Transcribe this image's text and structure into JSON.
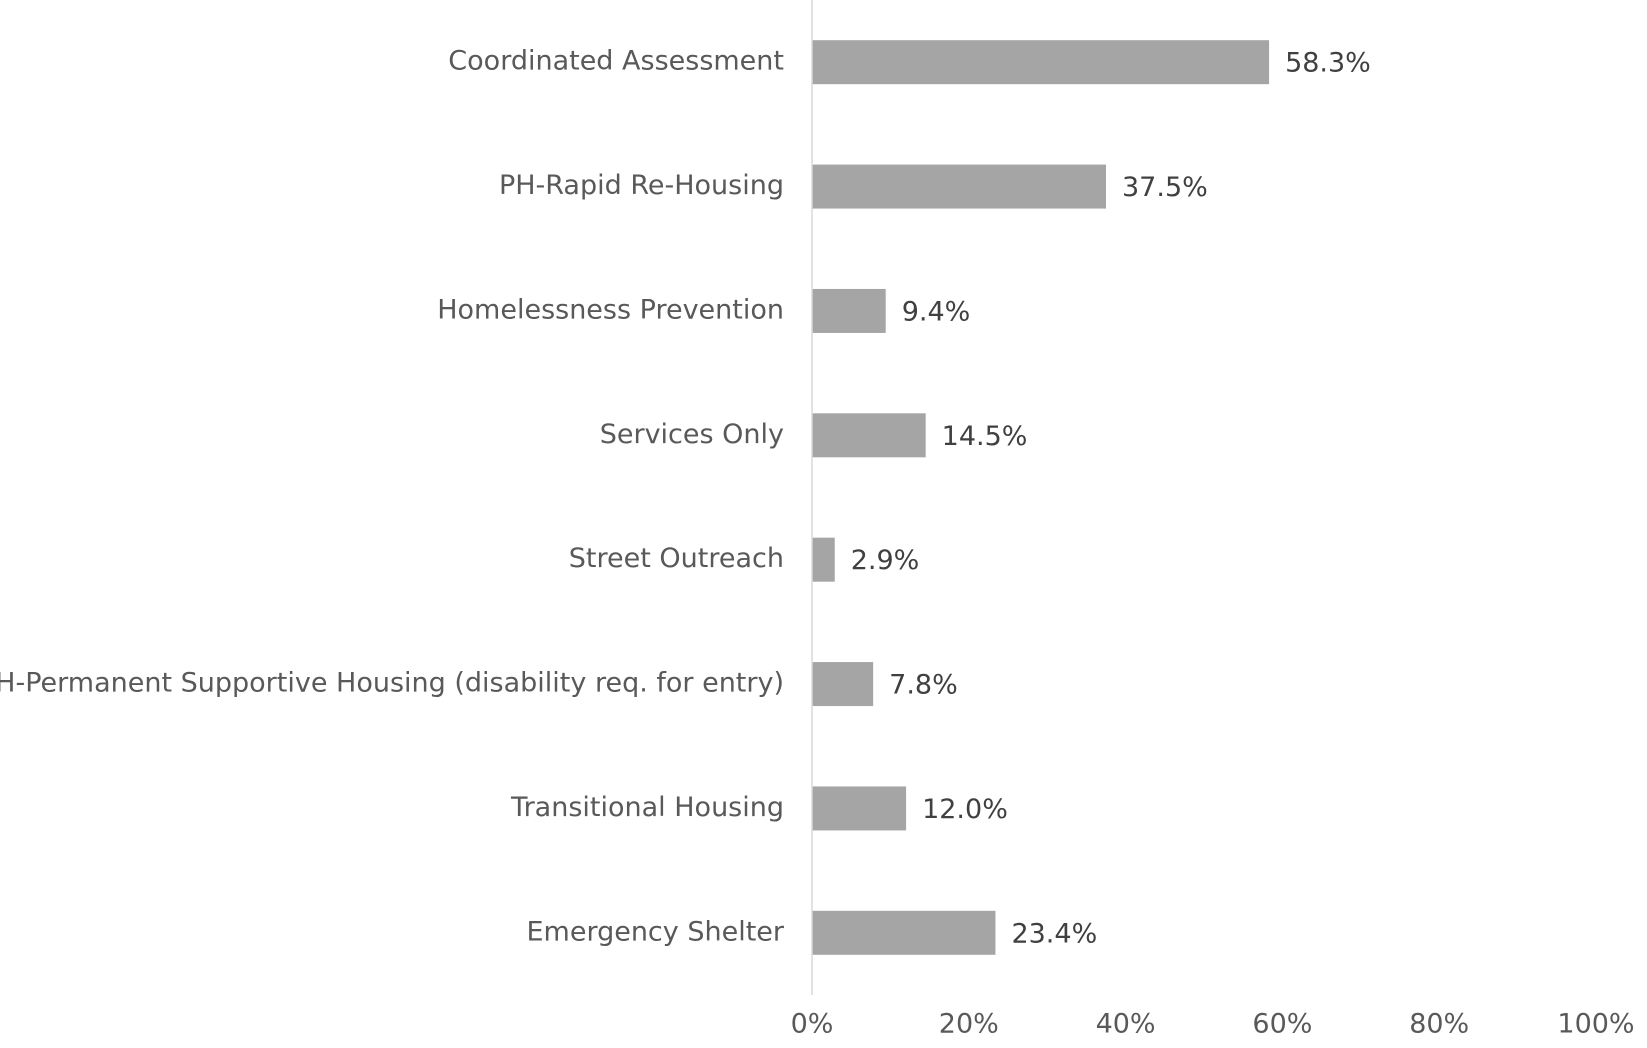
{
  "chart_data": {
    "type": "bar",
    "orientation": "horizontal",
    "categories": [
      "Coordinated Assessment",
      "PH-Rapid Re-Housing",
      "Homelessness Prevention",
      "Services Only",
      "Street Outreach",
      "PH-Permanent Supportive Housing (disability req. for entry)",
      "Transitional Housing",
      "Emergency Shelter"
    ],
    "values": [
      58.3,
      37.5,
      9.4,
      14.5,
      2.9,
      7.8,
      12.0,
      23.4
    ],
    "value_labels": [
      "58.3%",
      "37.5%",
      "9.4%",
      "14.5%",
      "2.9%",
      "7.8%",
      "12.0%",
      "23.4%"
    ],
    "color": "#a5a5a5",
    "xlim": [
      0,
      100
    ],
    "xticks": [
      {
        "value": 0,
        "label": "0%"
      },
      {
        "value": 20,
        "label": "20%"
      },
      {
        "value": 40,
        "label": "40%"
      },
      {
        "value": 60,
        "label": "60%"
      },
      {
        "value": 80,
        "label": "80%"
      },
      {
        "value": 100,
        "label": "100%"
      }
    ],
    "grid": false
  }
}
